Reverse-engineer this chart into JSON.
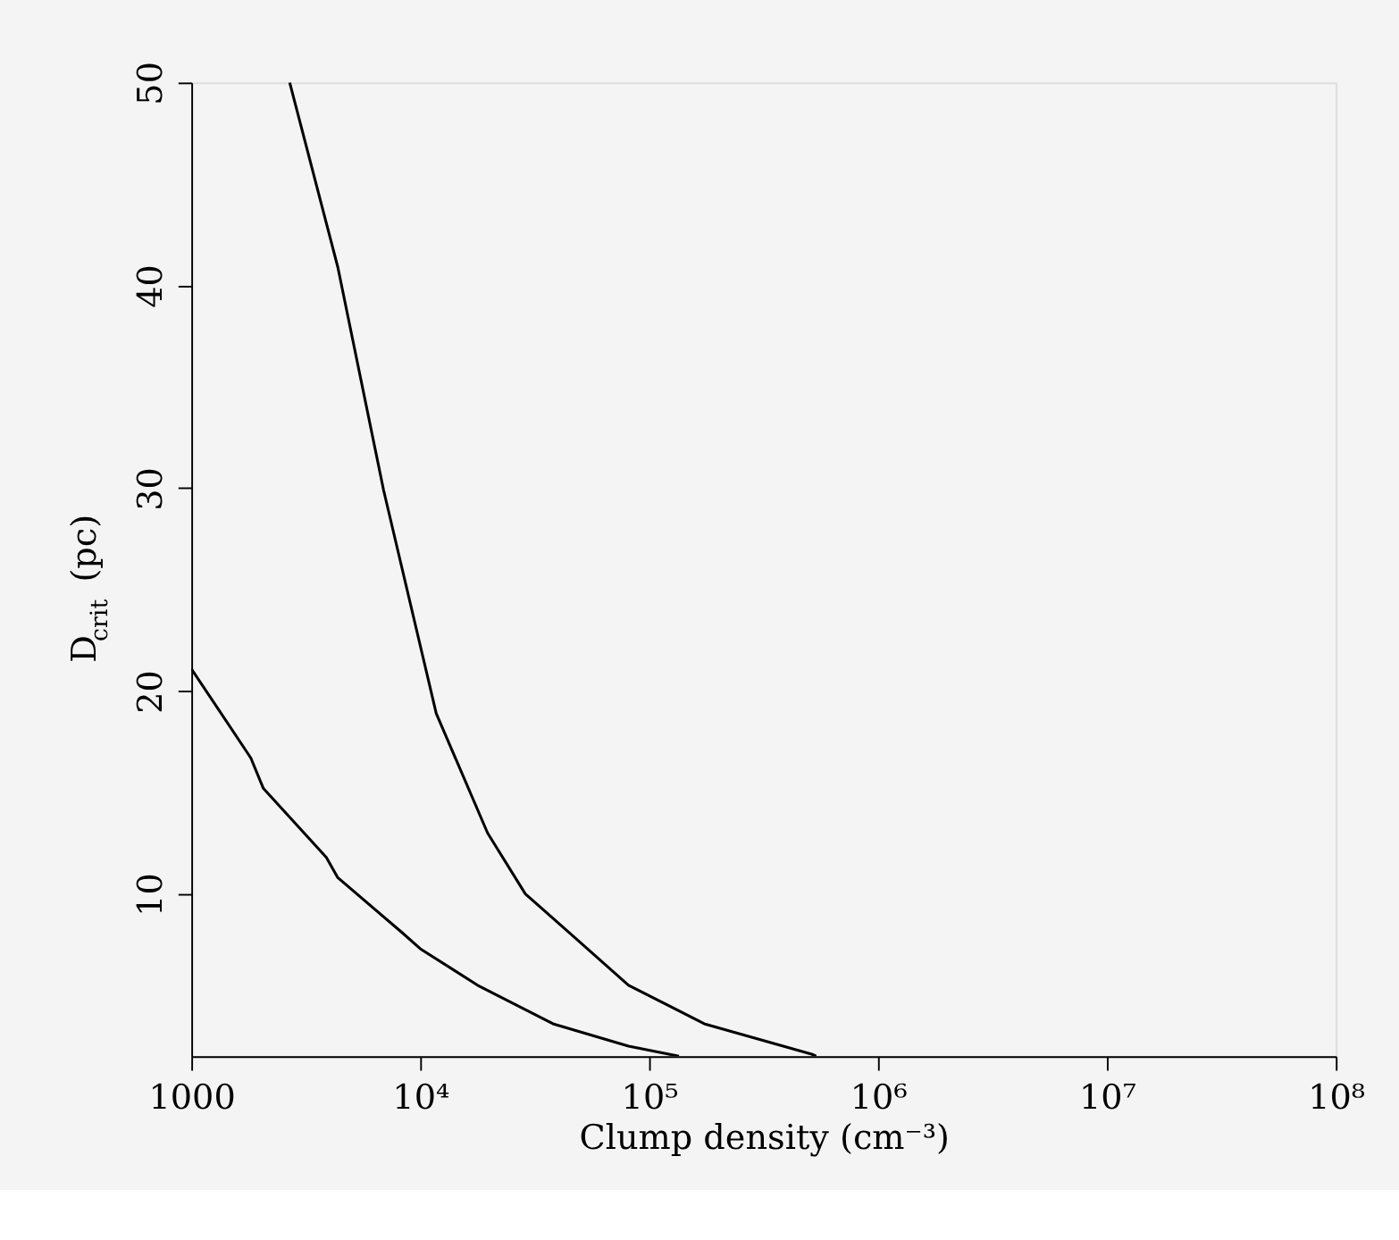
{
  "chart_data": {
    "type": "line",
    "xlabel": "Clump density (cm⁻³)",
    "ylabel": "D$_{crit}$ (pc)",
    "log": "x",
    "xlim": [
      1000,
      100000000
    ],
    "ylim": [
      2,
      50
    ],
    "xticks": [
      1000,
      {
        "value": 10000,
        "label": "10⁴"
      },
      {
        "value": 100000,
        "label": "10⁵"
      },
      {
        "value": 1000000,
        "label": "10⁶"
      },
      {
        "value": 10000000,
        "label": "10⁷"
      },
      {
        "value": 100000000,
        "label": "10⁸"
      }
    ],
    "yticks": [
      10,
      20,
      30,
      40,
      50
    ],
    "grid": false,
    "legend": false,
    "line_style": "solid",
    "marker": "none",
    "series": [
      {
        "color": "#000000",
        "x": [
          1000,
          1820,
          2065,
          3890,
          4365,
          8320,
          10000,
          17800,
          38000,
          81300,
          135000
        ],
        "values": [
          21.1,
          16.7,
          15.2,
          11.8,
          10.8,
          8.1,
          7.3,
          5.5,
          3.6,
          2.5,
          2.0
        ]
      },
      {
        "color": "#000000",
        "x": [
          2690,
          4365,
          6920,
          11750,
          19700,
          28800,
          47900,
          81300,
          174000,
          513000,
          537000
        ],
        "values": [
          50,
          40.9,
          29.9,
          18.9,
          13.0,
          10,
          7.8,
          5.5,
          3.6,
          2.1,
          2.0
        ]
      }
    ]
  }
}
